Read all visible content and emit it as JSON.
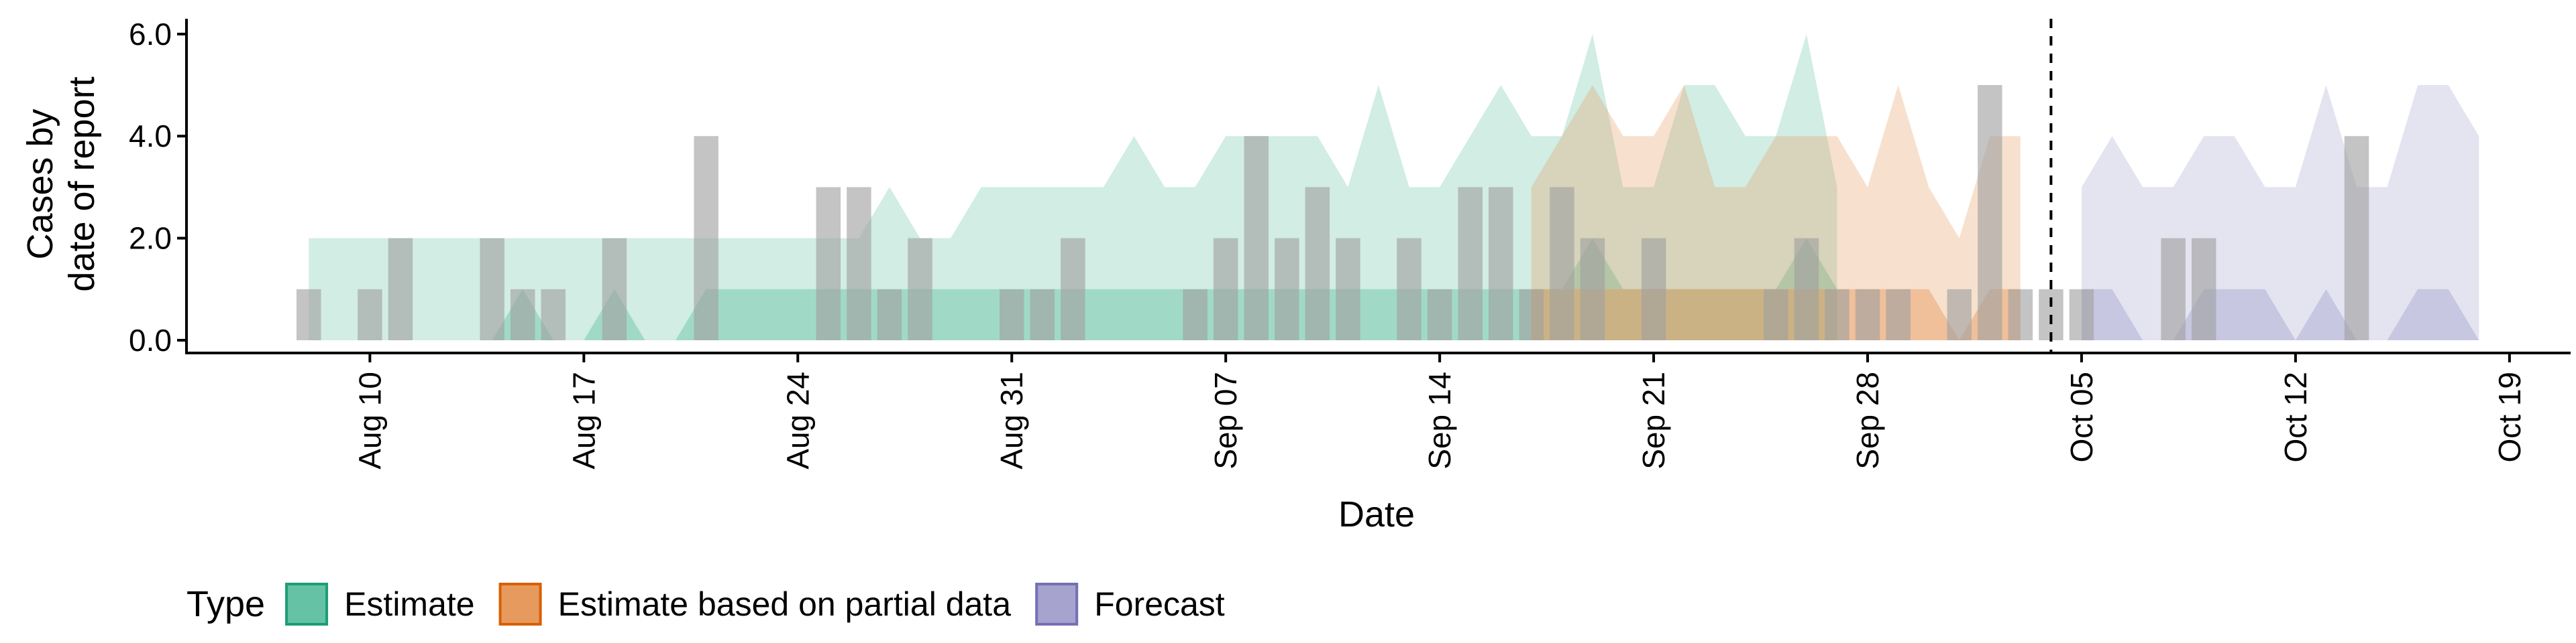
{
  "chart_data": {
    "type": "area",
    "xlabel": "Date",
    "ylabel": [
      "Cases by",
      "date of report"
    ],
    "x_ticks": [
      {
        "date": "2020-08-10",
        "label": "Aug 10"
      },
      {
        "date": "2020-08-17",
        "label": "Aug 17"
      },
      {
        "date": "2020-08-24",
        "label": "Aug 24"
      },
      {
        "date": "2020-08-31",
        "label": "Aug 31"
      },
      {
        "date": "2020-09-07",
        "label": "Sep 07"
      },
      {
        "date": "2020-09-14",
        "label": "Sep 14"
      },
      {
        "date": "2020-09-21",
        "label": "Sep 21"
      },
      {
        "date": "2020-09-28",
        "label": "Sep 28"
      },
      {
        "date": "2020-10-05",
        "label": "Oct 05"
      },
      {
        "date": "2020-10-12",
        "label": "Oct 12"
      },
      {
        "date": "2020-10-19",
        "label": "Oct 19"
      }
    ],
    "y_ticks": [
      0,
      2,
      4,
      6
    ],
    "y_tick_labels": [
      "0.0",
      "2.0",
      "4.0",
      "6.0"
    ],
    "xlim": [
      "2020-08-04",
      "2020-10-21"
    ],
    "ylim": [
      -0.25,
      6.3
    ],
    "forecast_line_date": "2020-10-04",
    "legend": {
      "title": "Type",
      "position": "bottom",
      "entries": [
        {
          "label": "Estimate",
          "fill": "#66c2a5",
          "border": "#1b9e77"
        },
        {
          "label": "Estimate based on partial data",
          "fill": "#e69a5e",
          "border": "#d95f02"
        },
        {
          "label": "Forecast",
          "fill": "#a6a3ce",
          "border": "#7570b3"
        }
      ]
    },
    "bar_color": "#a0a0a0",
    "reported_cases": {
      "start": "2020-08-08",
      "values": [
        1,
        0,
        1,
        2,
        0,
        0,
        2,
        1,
        1,
        0,
        2,
        0,
        0,
        4,
        0,
        0,
        0,
        3,
        3,
        1,
        2,
        0,
        0,
        1,
        1,
        2,
        0,
        0,
        0,
        1,
        2,
        4,
        2,
        3,
        2,
        0,
        2,
        1,
        3,
        3,
        1,
        3,
        2,
        0,
        2,
        0,
        0,
        0,
        1,
        2,
        1,
        1,
        1,
        0,
        1,
        5,
        1,
        1,
        1,
        0,
        0,
        2,
        2,
        0,
        0,
        0,
        0,
        4
      ]
    },
    "series": [
      {
        "name": "Estimate",
        "fill": "#66c2a5",
        "start": "2020-08-08",
        "outer_upper": [
          2,
          2,
          2,
          2,
          2,
          2,
          2,
          2,
          2,
          2,
          2,
          2,
          2,
          2,
          2,
          2,
          2,
          2,
          2,
          3,
          2,
          2,
          3,
          3,
          3,
          3,
          3,
          4,
          3,
          3,
          4,
          4,
          4,
          4,
          3,
          5,
          3,
          3,
          4,
          5,
          4,
          4,
          6,
          3,
          3,
          5,
          5,
          4,
          4,
          6,
          3
        ],
        "outer_lower": [
          0,
          0,
          0,
          0,
          0,
          0,
          0,
          0,
          0,
          0,
          0,
          0,
          0,
          0,
          0,
          0,
          0,
          0,
          0,
          0,
          0,
          0,
          0,
          0,
          0,
          0,
          0,
          0,
          0,
          0,
          0,
          0,
          0,
          0,
          0,
          0,
          0,
          0,
          0,
          0,
          0,
          0,
          0,
          0,
          0,
          0,
          0,
          0,
          0,
          0,
          0
        ],
        "inner_upper": [
          0,
          0,
          0,
          0,
          0,
          0,
          0,
          1,
          0,
          0,
          1,
          0,
          0,
          1,
          1,
          1,
          1,
          1,
          1,
          1,
          1,
          1,
          1,
          1,
          1,
          1,
          1,
          1,
          1,
          1,
          1,
          1,
          1,
          1,
          1,
          1,
          1,
          1,
          1,
          1,
          1,
          1,
          2,
          1,
          1,
          1,
          1,
          1,
          1,
          2,
          1
        ],
        "inner_lower": [
          0,
          0,
          0,
          0,
          0,
          0,
          0,
          0,
          0,
          0,
          0,
          0,
          0,
          0,
          0,
          0,
          0,
          0,
          0,
          0,
          0,
          0,
          0,
          0,
          0,
          0,
          0,
          0,
          0,
          0,
          0,
          0,
          0,
          0,
          0,
          0,
          0,
          0,
          0,
          0,
          0,
          0,
          0,
          0,
          0,
          0,
          0,
          0,
          0,
          0,
          0
        ]
      },
      {
        "name": "Estimate based on partial data",
        "fill": "#e69a5e",
        "start": "2020-09-17",
        "outer_upper": [
          3,
          4,
          5,
          4,
          4,
          5,
          3,
          3,
          4,
          4,
          4,
          3,
          5,
          3,
          2,
          4,
          4
        ],
        "outer_lower": [
          0,
          0,
          0,
          0,
          0,
          0,
          0,
          0,
          0,
          0,
          0,
          0,
          0,
          0,
          0,
          0,
          0
        ],
        "inner_upper": [
          1,
          1,
          1,
          1,
          1,
          1,
          1,
          1,
          1,
          1,
          1,
          1,
          1,
          1,
          0,
          1,
          1
        ],
        "inner_lower": [
          0,
          0,
          0,
          0,
          0,
          0,
          0,
          0,
          0,
          0,
          0,
          0,
          0,
          0,
          0,
          0,
          0
        ]
      },
      {
        "name": "Forecast",
        "fill": "#a6a3ce",
        "start": "2020-10-05",
        "outer_upper": [
          3,
          4,
          3,
          3,
          4,
          4,
          3,
          3,
          5,
          3,
          3,
          5,
          5,
          4
        ],
        "outer_lower": [
          0,
          0,
          0,
          0,
          0,
          0,
          0,
          0,
          0,
          0,
          0,
          0,
          0,
          0
        ],
        "inner_upper": [
          1,
          1,
          0,
          0,
          1,
          1,
          1,
          0,
          1,
          0,
          0,
          1,
          1,
          0
        ],
        "inner_lower": [
          0,
          0,
          0,
          0,
          0,
          0,
          0,
          0,
          0,
          0,
          0,
          0,
          0,
          0
        ]
      }
    ]
  }
}
